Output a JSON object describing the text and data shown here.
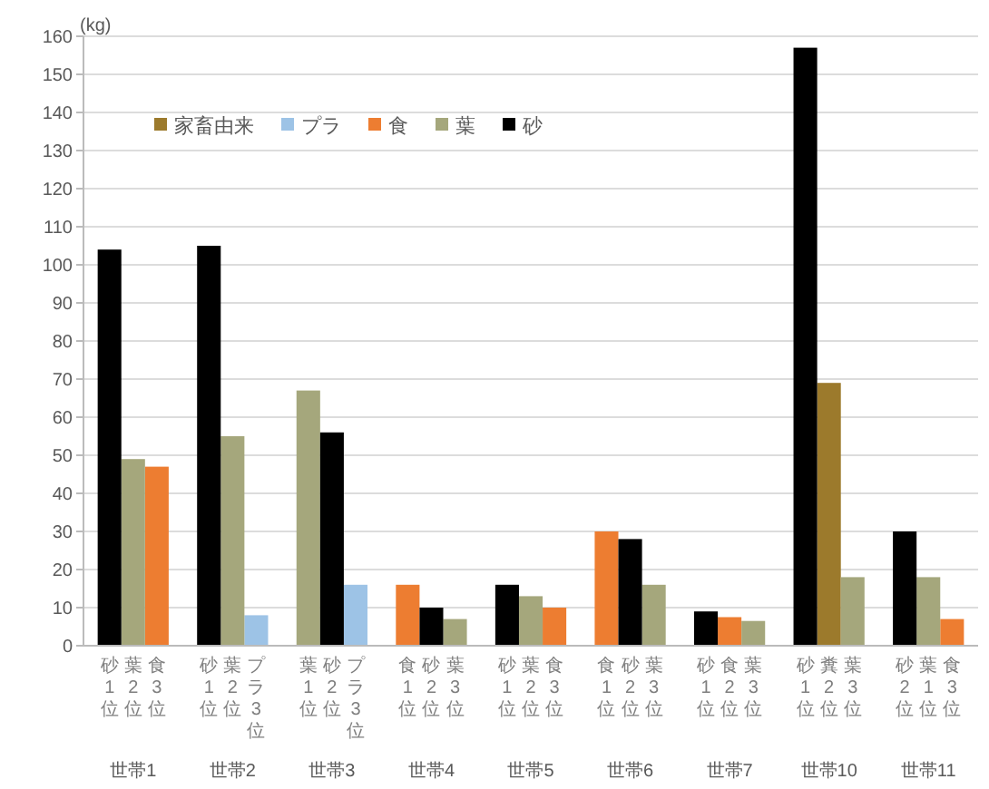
{
  "chart_data": {
    "type": "bar",
    "ylabel": "(kg)",
    "categories": [
      "砂1位",
      "葉2位",
      "食3位",
      "砂1位",
      "葉2位",
      "プラ3位",
      "葉1位",
      "砂2位",
      "プラ3位",
      "食1位",
      "砂2位",
      "葉3位",
      "砂1位",
      "葉2位",
      "食3位",
      "食1位",
      "砂2位",
      "葉3位",
      "砂1位",
      "食2位",
      "葉3位",
      "砂1位",
      "糞2位",
      "葉3位",
      "砂2位",
      "葉1位",
      "食3位"
    ],
    "series": [
      {
        "name": "家畜由来",
        "color": "#9c7a2c",
        "values": [
          null,
          null,
          null,
          null,
          null,
          null,
          null,
          null,
          null,
          null,
          null,
          null,
          null,
          null,
          null,
          null,
          null,
          null,
          null,
          null,
          null,
          null,
          69,
          null,
          null,
          null,
          null
        ]
      },
      {
        "name": "プラ",
        "color": "#9dc3e6",
        "values": [
          null,
          null,
          null,
          null,
          null,
          8,
          null,
          null,
          16,
          null,
          null,
          null,
          null,
          null,
          null,
          null,
          null,
          null,
          null,
          null,
          null,
          null,
          null,
          null,
          null,
          null,
          null
        ]
      },
      {
        "name": "食",
        "color": "#ed7d31",
        "values": [
          null,
          null,
          47,
          null,
          null,
          null,
          null,
          null,
          null,
          16,
          null,
          null,
          null,
          null,
          10,
          30,
          null,
          null,
          null,
          7.5,
          null,
          null,
          null,
          null,
          null,
          null,
          7
        ]
      },
      {
        "name": "葉",
        "color": "#a5a77c",
        "values": [
          null,
          49,
          null,
          null,
          55,
          null,
          67,
          null,
          null,
          null,
          null,
          7,
          null,
          13,
          null,
          null,
          null,
          16,
          null,
          null,
          6.5,
          null,
          null,
          18,
          null,
          18,
          null
        ]
      },
      {
        "name": "砂",
        "color": "#000000",
        "values": [
          104,
          null,
          null,
          105,
          null,
          null,
          null,
          56,
          null,
          null,
          10,
          null,
          16,
          null,
          null,
          null,
          28,
          null,
          9,
          null,
          null,
          157,
          null,
          null,
          30,
          null,
          null
        ]
      }
    ],
    "annotations": [
      "世帯1",
      "世帯2",
      "世帯3",
      "世帯4",
      "世帯5",
      "世帯6",
      "世帯7",
      "世帯10",
      "世帯11"
    ],
    "ylim": [
      0,
      160
    ],
    "yticks": [
      0,
      10,
      20,
      30,
      40,
      50,
      60,
      70,
      80,
      90,
      100,
      110,
      120,
      130,
      140,
      150,
      160
    ],
    "grid": "y",
    "legend": "top left"
  }
}
